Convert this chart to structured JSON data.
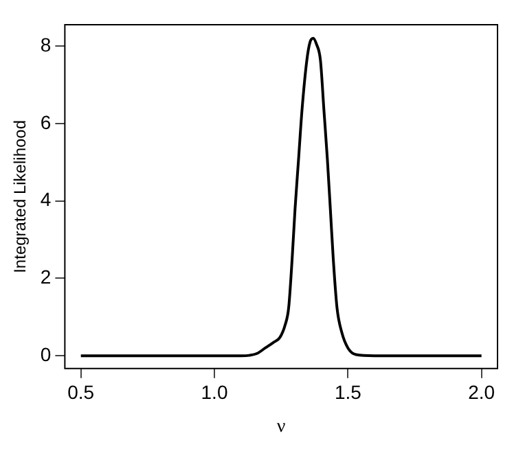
{
  "chart_data": {
    "type": "line",
    "xlabel": "ν",
    "ylabel": "Integrated Likelihood",
    "series": [
      {
        "color": "#000000",
        "x": [
          0.5,
          0.8,
          1.1,
          1.13,
          1.16,
          1.19,
          1.22,
          1.245,
          1.265,
          1.278,
          1.291,
          1.302,
          1.315,
          1.328,
          1.346,
          1.358,
          1.37,
          1.382,
          1.397,
          1.41,
          1.423,
          1.434,
          1.445,
          1.459,
          1.477,
          1.5,
          1.53,
          1.6,
          1.8,
          2.0
        ],
        "values": [
          0,
          0,
          0,
          0.01,
          0.06,
          0.2,
          0.34,
          0.47,
          0.8,
          1.24,
          2.5,
          3.8,
          5.07,
          6.35,
          7.63,
          8.1,
          8.2,
          8.05,
          7.63,
          6.35,
          5.07,
          3.8,
          2.5,
          1.24,
          0.6,
          0.2,
          0.03,
          0,
          0,
          0
        ]
      }
    ],
    "xlim": [
      0.44,
      2.06
    ],
    "ylim": [
      -0.33,
      8.55
    ],
    "xticks": [
      {
        "value": 0.5,
        "label": "0.5"
      },
      {
        "value": 1,
        "label": "1.0"
      },
      {
        "value": 1.5,
        "label": "1.5"
      },
      {
        "value": 2,
        "label": "2.0"
      }
    ],
    "yticks": [
      0,
      2,
      4,
      6,
      8
    ],
    "grid": false,
    "legend": false,
    "marker": "none",
    "line_style": "solid"
  }
}
